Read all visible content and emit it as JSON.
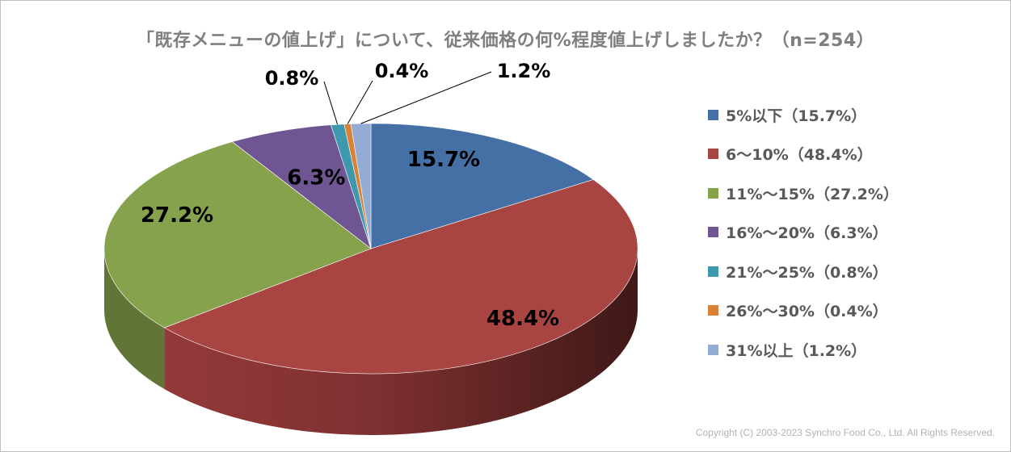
{
  "chart_data": {
    "type": "pie",
    "title": "「既存メニューの値上げ」について、従来価格の何%程度値上げしましたか？（n=254）",
    "categories": [
      "5%以下",
      "6〜10%",
      "11%〜15%",
      "16%〜20%",
      "21%〜25%",
      "26%〜30%",
      "31%以上"
    ],
    "values": [
      15.7,
      48.4,
      27.2,
      6.3,
      0.8,
      0.4,
      1.2
    ],
    "data_labels": [
      "15.7%",
      "48.4%",
      "27.2%",
      "6.3%",
      "0.8%",
      "0.4%",
      "1.2%"
    ],
    "legend_labels": [
      "5%以下（15.7%）",
      "6〜10%（48.4%）",
      "11%〜15%（27.2%）",
      "16%〜20%（6.3%）",
      "21%〜25%（0.8%）",
      "26%〜30%（0.4%）",
      "31%以上（1.2%）"
    ],
    "colors": [
      "#4470a6",
      "#a84442",
      "#87a24c",
      "#6f5591",
      "#3f99ae",
      "#da8138",
      "#94acd4"
    ],
    "legend_position": "right",
    "style": "3d-pie"
  },
  "copyright": "Copyright (C) 2003-2023  Synchro Food Co., Ltd. All Rights Reserved."
}
